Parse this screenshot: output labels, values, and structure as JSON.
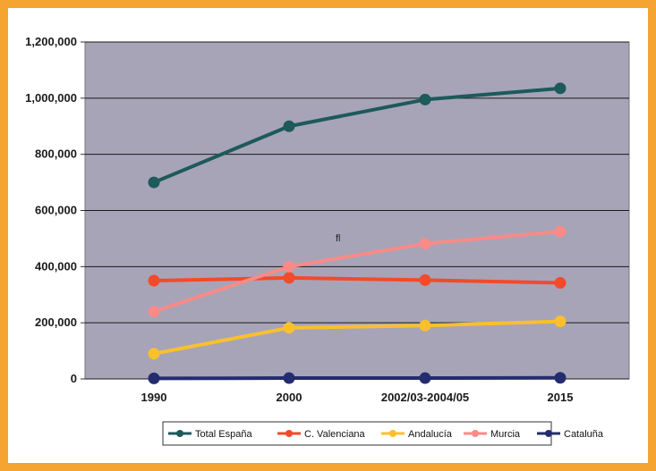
{
  "chart_data": {
    "type": "line",
    "title": "",
    "xlabel": "",
    "ylabel": "",
    "categories": [
      "1990",
      "2000",
      "2002/03-2004/05",
      "2015"
    ],
    "ylim": [
      0,
      1200000
    ],
    "yticks": [
      "0",
      "200,000",
      "400,000",
      "600,000",
      "800,000",
      "1,000,000",
      "1,200,000"
    ],
    "grid": true,
    "legend_position": "bottom",
    "annotation": "fl",
    "series": [
      {
        "name": "Total España",
        "color": "#1d5a5a",
        "values": [
          700000,
          900000,
          995000,
          1035000
        ]
      },
      {
        "name": "C. Valenciana",
        "color": "#f24a2a",
        "values": [
          350000,
          360000,
          352000,
          342000
        ]
      },
      {
        "name": "Andalucía",
        "color": "#f9c02e",
        "values": [
          90000,
          182000,
          190000,
          205000
        ]
      },
      {
        "name": "Murcia",
        "color": "#f98a87",
        "values": [
          240000,
          400000,
          482000,
          525000
        ]
      },
      {
        "name": "Cataluña",
        "color": "#232c6f",
        "values": [
          2000,
          3000,
          3000,
          4000
        ]
      }
    ]
  },
  "colors": {
    "frame": "#f5a431",
    "plot_background": "#a7a4b8",
    "gridline": "#1a1a1a"
  }
}
